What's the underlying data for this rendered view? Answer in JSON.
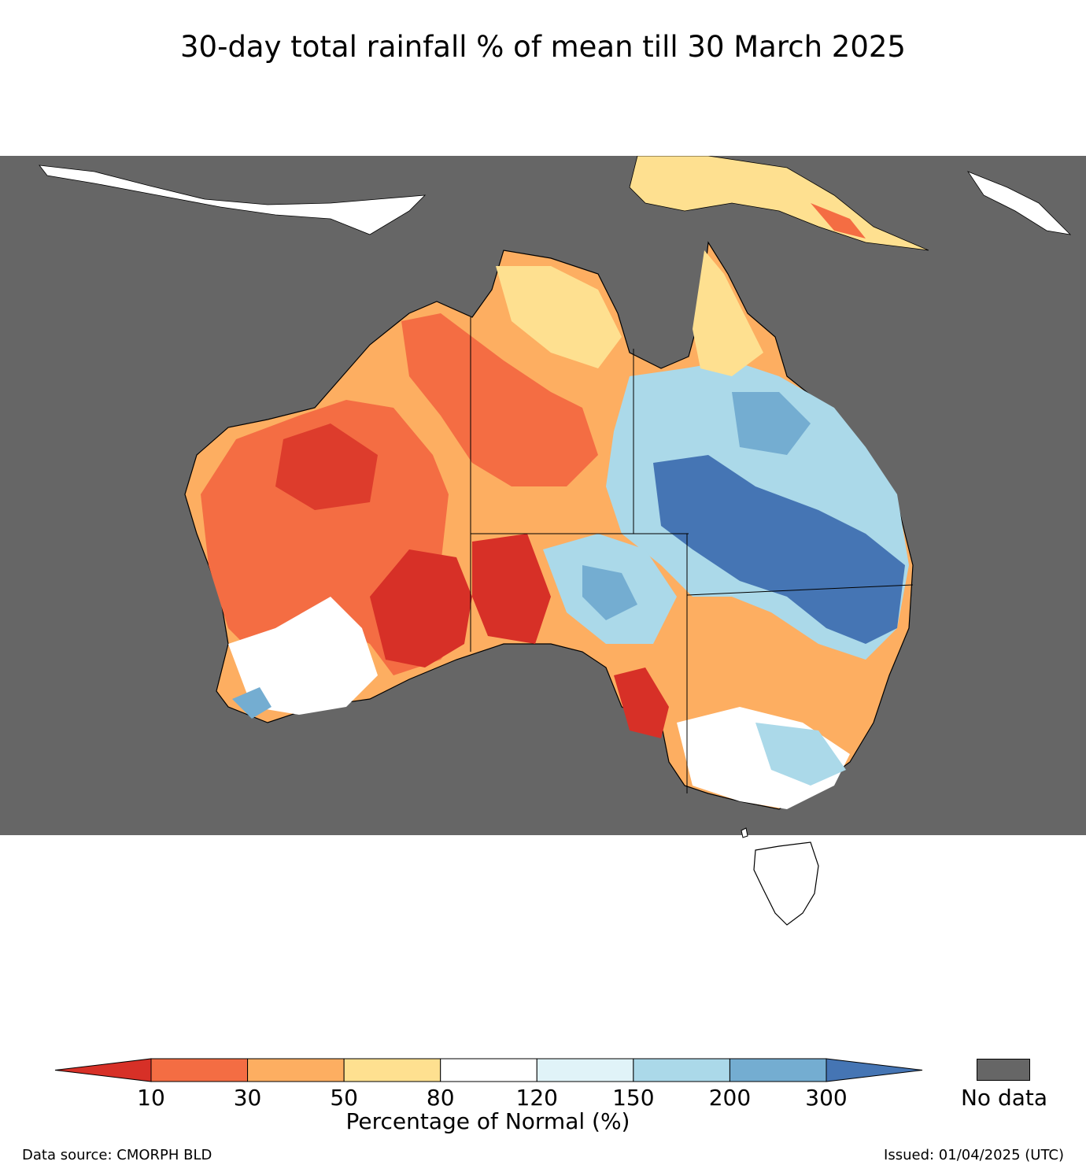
{
  "title": "30-day total rainfall % of mean till 30 March 2025",
  "colorbar": {
    "label": "Percentage of Normal (%)",
    "ticks": [
      "10",
      "30",
      "50",
      "80",
      "120",
      "150",
      "200",
      "300"
    ],
    "colors": [
      "#d73027",
      "#f46d43",
      "#fdae61",
      "#fee090",
      "#ffffff",
      "#e0f3f8",
      "#abd9e9",
      "#74add1",
      "#4575b4"
    ],
    "bins": [
      {
        "range": "<10",
        "color": "#d73027"
      },
      {
        "range": "10-30",
        "color": "#f46d43"
      },
      {
        "range": "30-50",
        "color": "#fdae61"
      },
      {
        "range": "50-80",
        "color": "#fee090"
      },
      {
        "range": "80-120",
        "color": "#ffffff"
      },
      {
        "range": "120-150",
        "color": "#e0f3f8"
      },
      {
        "range": "150-200",
        "color": "#abd9e9"
      },
      {
        "range": "200-300",
        "color": "#74add1"
      },
      {
        "range": ">300",
        "color": "#4575b4"
      }
    ]
  },
  "nodata": {
    "label": "No data",
    "color": "#666666"
  },
  "footer": {
    "source": "Data source: CMORPH BLD",
    "issued": "Issued: 01/04/2025 (UTC)"
  }
}
